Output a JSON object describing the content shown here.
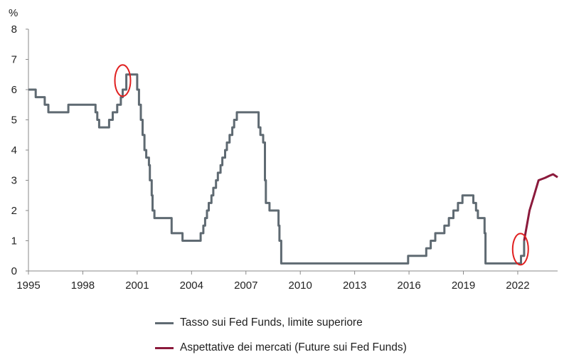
{
  "chart_data": {
    "type": "line",
    "title": "",
    "ylabel": "%",
    "xlabel": "",
    "xlim": [
      1995,
      2024.2
    ],
    "ylim": [
      0,
      8
    ],
    "x_ticks": [
      "1995",
      "1998",
      "2001",
      "2004",
      "2007",
      "2010",
      "2013",
      "2016",
      "2019",
      "2022"
    ],
    "x_tick_values": [
      1995,
      1998,
      2001,
      2004,
      2007,
      2010,
      2013,
      2016,
      2019,
      2022
    ],
    "y_ticks": [
      "0",
      "1",
      "2",
      "3",
      "4",
      "5",
      "6",
      "7",
      "8"
    ],
    "y_tick_values": [
      0,
      1,
      2,
      3,
      4,
      5,
      6,
      7,
      8
    ],
    "grid": false,
    "legend_position": "bottom",
    "series": [
      {
        "name": "Tasso sui Fed Funds, limite superiore",
        "color": "#5f6a72",
        "step": true,
        "points": [
          [
            1995.0,
            6.0
          ],
          [
            1995.4,
            5.75
          ],
          [
            1995.9,
            5.5
          ],
          [
            1996.1,
            5.25
          ],
          [
            1997.2,
            5.5
          ],
          [
            1998.7,
            5.25
          ],
          [
            1998.8,
            5.0
          ],
          [
            1998.9,
            4.75
          ],
          [
            1999.45,
            5.0
          ],
          [
            1999.65,
            5.25
          ],
          [
            1999.9,
            5.5
          ],
          [
            2000.1,
            5.75
          ],
          [
            2000.2,
            6.0
          ],
          [
            2000.4,
            6.5
          ],
          [
            2001.0,
            6.0
          ],
          [
            2001.1,
            5.5
          ],
          [
            2001.2,
            5.0
          ],
          [
            2001.3,
            4.5
          ],
          [
            2001.4,
            4.0
          ],
          [
            2001.5,
            3.75
          ],
          [
            2001.65,
            3.5
          ],
          [
            2001.7,
            3.0
          ],
          [
            2001.8,
            2.5
          ],
          [
            2001.85,
            2.0
          ],
          [
            2001.95,
            1.75
          ],
          [
            2002.9,
            1.25
          ],
          [
            2003.5,
            1.0
          ],
          [
            2004.5,
            1.25
          ],
          [
            2004.65,
            1.5
          ],
          [
            2004.75,
            1.75
          ],
          [
            2004.85,
            2.0
          ],
          [
            2004.95,
            2.25
          ],
          [
            2005.1,
            2.5
          ],
          [
            2005.2,
            2.75
          ],
          [
            2005.35,
            3.0
          ],
          [
            2005.45,
            3.25
          ],
          [
            2005.6,
            3.5
          ],
          [
            2005.7,
            3.75
          ],
          [
            2005.85,
            4.0
          ],
          [
            2005.95,
            4.25
          ],
          [
            2006.1,
            4.5
          ],
          [
            2006.25,
            4.75
          ],
          [
            2006.35,
            5.0
          ],
          [
            2006.5,
            5.25
          ],
          [
            2007.7,
            4.75
          ],
          [
            2007.8,
            4.5
          ],
          [
            2007.95,
            4.25
          ],
          [
            2008.05,
            3.0
          ],
          [
            2008.1,
            2.25
          ],
          [
            2008.3,
            2.0
          ],
          [
            2008.8,
            1.5
          ],
          [
            2008.85,
            1.0
          ],
          [
            2008.95,
            0.25
          ],
          [
            2015.95,
            0.5
          ],
          [
            2016.95,
            0.75
          ],
          [
            2017.2,
            1.0
          ],
          [
            2017.45,
            1.25
          ],
          [
            2017.95,
            1.5
          ],
          [
            2018.2,
            1.75
          ],
          [
            2018.45,
            2.0
          ],
          [
            2018.7,
            2.25
          ],
          [
            2018.95,
            2.5
          ],
          [
            2019.55,
            2.25
          ],
          [
            2019.7,
            2.0
          ],
          [
            2019.8,
            1.75
          ],
          [
            2020.17,
            1.25
          ],
          [
            2020.22,
            0.25
          ],
          [
            2022.18,
            0.5
          ],
          [
            2022.35,
            1.0
          ]
        ]
      },
      {
        "name": "Aspettative dei mercati (Future sui Fed Funds)",
        "color": "#8b1a3c",
        "step": false,
        "points": [
          [
            2022.35,
            1.0
          ],
          [
            2022.5,
            1.5
          ],
          [
            2022.65,
            2.0
          ],
          [
            2022.9,
            2.5
          ],
          [
            2023.15,
            3.0
          ],
          [
            2023.5,
            3.08
          ],
          [
            2023.75,
            3.15
          ],
          [
            2023.95,
            3.2
          ],
          [
            2024.2,
            3.1
          ]
        ]
      }
    ],
    "annotations": [
      {
        "type": "ellipse",
        "color": "#e02020",
        "x": 2000.2,
        "y": 6.3
      },
      {
        "type": "ellipse",
        "color": "#e02020",
        "x": 2022.15,
        "y": 0.72
      }
    ]
  }
}
